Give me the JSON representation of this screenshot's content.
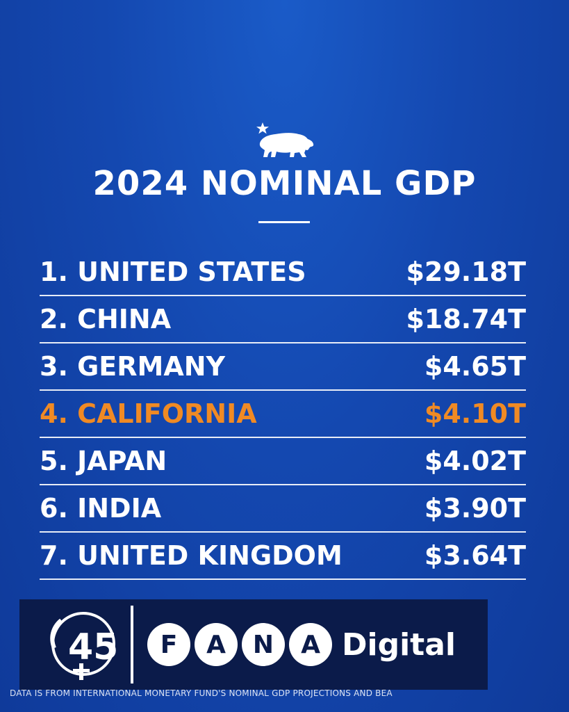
{
  "title": "2024 NOMINAL GDP",
  "chart_data": {
    "type": "table",
    "title": "2024 NOMINAL GDP",
    "unit": "T",
    "rows": [
      {
        "rank_label": "1. UNITED STATES",
        "value_label": "$29.18T",
        "value": 29.18,
        "highlight": false
      },
      {
        "rank_label": "2. CHINA",
        "value_label": "$18.74T",
        "value": 18.74,
        "highlight": false
      },
      {
        "rank_label": "3. GERMANY",
        "value_label": "$4.65T",
        "value": 4.65,
        "highlight": false
      },
      {
        "rank_label": "4. CALIFORNIA",
        "value_label": "$4.10T",
        "value": 4.1,
        "highlight": true
      },
      {
        "rank_label": "5. JAPAN",
        "value_label": "$4.02T",
        "value": 4.02,
        "highlight": false
      },
      {
        "rank_label": "6. INDIA",
        "value_label": "$3.90T",
        "value": 3.9,
        "highlight": false
      },
      {
        "rank_label": "7. UNITED KINGDOM",
        "value_label": "$3.64T",
        "value": 3.64,
        "highlight": false
      }
    ]
  },
  "colors": {
    "highlight": "#f08a24",
    "text": "#ffffff"
  },
  "watermark": {
    "letters": [
      "F",
      "A",
      "N",
      "A"
    ],
    "suffix": "Digital"
  },
  "footnote": "DATA IS FROM INTERNATIONAL MONETARY FUND'S NOMINAL GDP PROJECTIONS AND BEA",
  "icons": {
    "header": "california-bear-star-icon",
    "watermark": "fana-45-logo-icon"
  }
}
